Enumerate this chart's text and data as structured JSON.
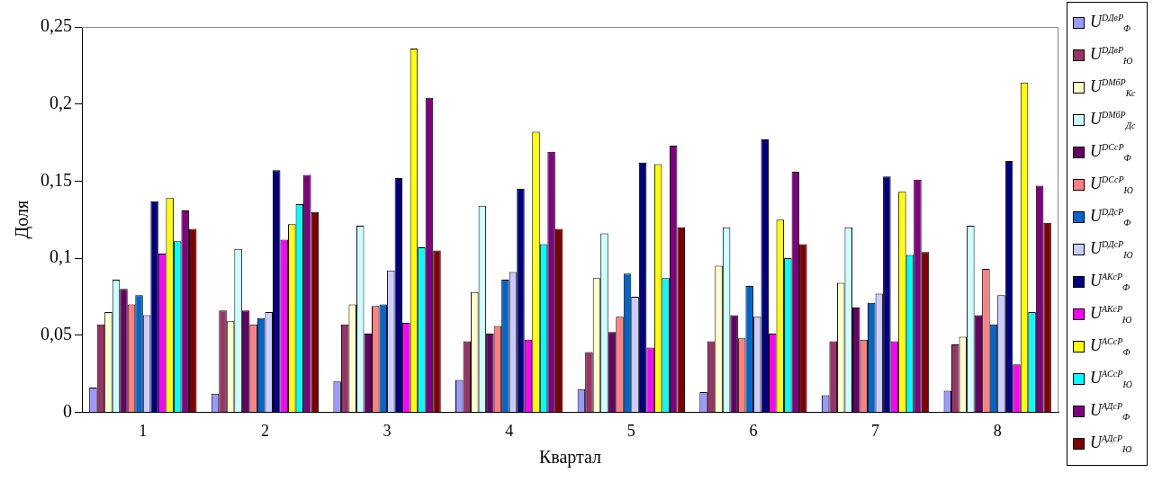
{
  "chart_data": {
    "type": "bar",
    "xlabel": "Квартал",
    "ylabel": "Доля",
    "categories": [
      "1",
      "2",
      "3",
      "4",
      "5",
      "6",
      "7",
      "8"
    ],
    "ylim": [
      0,
      0.25
    ],
    "yticks": [
      {
        "value": 0,
        "label": "0"
      },
      {
        "value": 0.05,
        "label": "0,05"
      },
      {
        "value": 0.1,
        "label": "0,1"
      },
      {
        "value": 0.15,
        "label": "0,15"
      },
      {
        "value": 0.2,
        "label": "0,2"
      },
      {
        "value": 0.25,
        "label": "0,25"
      }
    ],
    "grid": false,
    "legend": "right",
    "series": [
      {
        "name": "U$^{D}$$^{Дв}$$^{P}$$_{Ф}$",
        "color": "#9999ff",
        "values": [
          0.016,
          0.012,
          0.02,
          0.021,
          0.015,
          0.013,
          0.011,
          0.014
        ]
      },
      {
        "name": "U$^{D}$$^{Дв}$$^{P}$$_{Ю}$",
        "color": "#993366",
        "values": [
          0.057,
          0.066,
          0.057,
          0.046,
          0.039,
          0.046,
          0.046,
          0.044
        ]
      },
      {
        "name": "U$^{D}$$^{Мб}$$^{P}$$_{Кс}$",
        "color": "#ffffcc",
        "values": [
          0.065,
          0.059,
          0.07,
          0.078,
          0.087,
          0.095,
          0.084,
          0.049
        ]
      },
      {
        "name": "U$^{D}$$^{Мб}$$^{P}$$_{Дс}$",
        "color": "#ccffff",
        "values": [
          0.086,
          0.106,
          0.121,
          0.134,
          0.116,
          0.12,
          0.12,
          0.121
        ]
      },
      {
        "name": "U$^{D}$$^{Сс}$$^{P}$$_{Ф}$",
        "color": "#660066",
        "values": [
          0.08,
          0.066,
          0.051,
          0.051,
          0.052,
          0.063,
          0.068,
          0.063
        ]
      },
      {
        "name": "U$^{D}$$^{Сс}$$^{P}$$_{Ю}$",
        "color": "#ff8080",
        "values": [
          0.07,
          0.057,
          0.069,
          0.056,
          0.062,
          0.048,
          0.047,
          0.093
        ]
      },
      {
        "name": "U$^{D}$$^{Дс}$$^{P}$$_{Ф}$",
        "color": "#0066cc",
        "values": [
          0.076,
          0.061,
          0.07,
          0.086,
          0.09,
          0.082,
          0.071,
          0.057
        ]
      },
      {
        "name": "U$^{D}$$^{Дс}$$^{P}$$_{Ю}$",
        "color": "#ccccff",
        "values": [
          0.063,
          0.065,
          0.092,
          0.091,
          0.075,
          0.062,
          0.077,
          0.076
        ]
      },
      {
        "name": "U$^{A}$$^{Кс}$$^{P}$$_{Ф}$",
        "color": "#000080",
        "values": [
          0.137,
          0.157,
          0.152,
          0.145,
          0.162,
          0.177,
          0.153,
          0.163
        ]
      },
      {
        "name": "U$^{A}$$^{Кс}$$^{P}$$_{Ю}$",
        "color": "#ff00ff",
        "values": [
          0.103,
          0.112,
          0.058,
          0.047,
          0.042,
          0.051,
          0.046,
          0.031
        ]
      },
      {
        "name": "U$^{A}$$^{Сс}$$^{P}$$_{Ф}$",
        "color": "#ffff00",
        "values": [
          0.139,
          0.122,
          0.236,
          0.182,
          0.161,
          0.125,
          0.143,
          0.214
        ]
      },
      {
        "name": "U$^{A}$$^{Сс}$$^{P}$$_{Ю}$",
        "color": "#00ffff",
        "values": [
          0.111,
          0.135,
          0.107,
          0.109,
          0.087,
          0.1,
          0.102,
          0.065
        ]
      },
      {
        "name": "U$^{A}$$^{Дс}$$^{P}$$_{Ф}$",
        "color": "#800080",
        "values": [
          0.131,
          0.154,
          0.204,
          0.169,
          0.173,
          0.156,
          0.151,
          0.147
        ]
      },
      {
        "name": "U$^{A}$$^{Дс}$$^{P}$$_{Ю}$",
        "color": "#800000",
        "values": [
          0.119,
          0.13,
          0.105,
          0.119,
          0.12,
          0.109,
          0.104,
          0.123
        ]
      }
    ]
  }
}
